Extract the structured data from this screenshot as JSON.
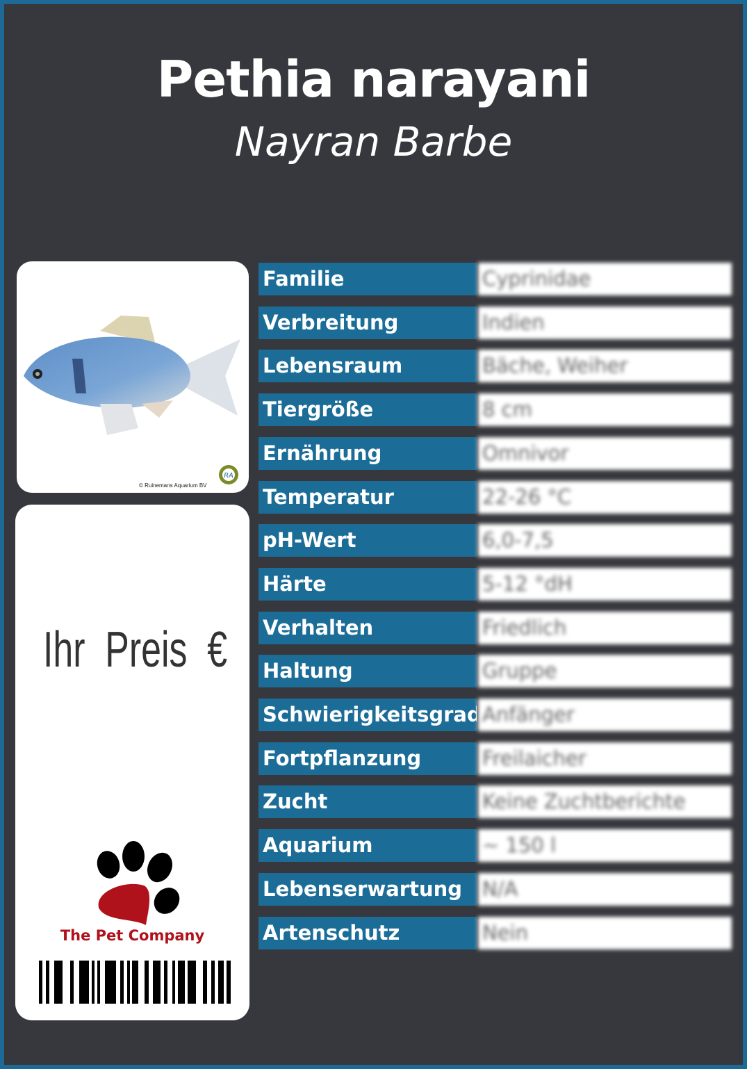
{
  "header": {
    "title": "Pethia narayani",
    "subtitle": "Nayran Barbe"
  },
  "photo": {
    "credit": "© Ruinemans Aquarium BV",
    "logo_text": "RA"
  },
  "price": {
    "label": "Ihr Preis €"
  },
  "brand": {
    "name": "The Pet Company",
    "paw_color": "#b0121b"
  },
  "colors": {
    "frame": "#1d6a97",
    "background": "#37383d",
    "label_bg": "#1b6d98"
  },
  "rows": [
    {
      "label": "Familie",
      "value": "Cyprinidae"
    },
    {
      "label": "Verbreitung",
      "value": "Indien"
    },
    {
      "label": "Lebensraum",
      "value": "Bäche, Weiher"
    },
    {
      "label": "Tiergröße",
      "value": "8 cm"
    },
    {
      "label": "Ernährung",
      "value": "Omnivor"
    },
    {
      "label": "Temperatur",
      "value": "22-26 °C"
    },
    {
      "label": "pH-Wert",
      "value": "6,0-7,5"
    },
    {
      "label": "Härte",
      "value": "5-12 °dH"
    },
    {
      "label": "Verhalten",
      "value": "Friedlich"
    },
    {
      "label": "Haltung",
      "value": "Gruppe"
    },
    {
      "label": "Schwierigkeitsgrad",
      "value": "Anfänger"
    },
    {
      "label": "Fortpflanzung",
      "value": "Freilaicher"
    },
    {
      "label": "Zucht",
      "value": "Keine Zuchtberichte"
    },
    {
      "label": "Aquarium",
      "value": "~ 150 l"
    },
    {
      "label": "Lebenserwartung",
      "value": "N/A"
    },
    {
      "label": "Artenschutz",
      "value": "Nein"
    }
  ]
}
